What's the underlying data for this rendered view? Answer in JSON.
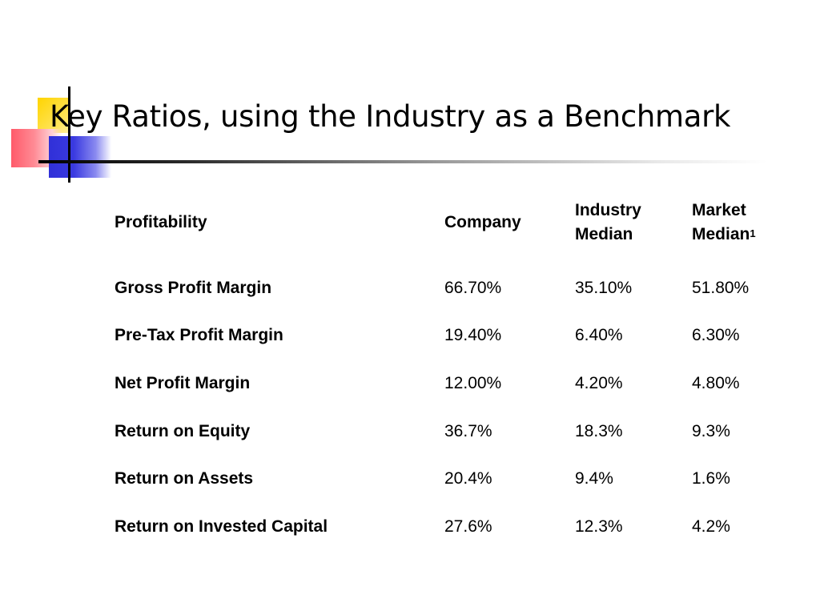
{
  "title": "Key Ratios, using the Industry as a Benchmark",
  "table": {
    "headers": {
      "metric": "Profitability",
      "company": "Company",
      "industry_line1": "Industry",
      "industry_line2": "Median",
      "market_line1": "Market",
      "market_line2": "Median",
      "market_footnote": "1"
    },
    "rows": [
      {
        "metric": "Gross Profit Margin",
        "company": "66.70%",
        "industry": "35.10%",
        "market": "51.80%"
      },
      {
        "metric": "Pre-Tax Profit Margin",
        "company": "19.40%",
        "industry": "6.40%",
        "market": "6.30%"
      },
      {
        "metric": "Net Profit Margin",
        "company": "12.00%",
        "industry": "4.20%",
        "market": "4.80%"
      },
      {
        "metric": "Return on Equity",
        "company": "36.7%",
        "industry": "18.3%",
        "market": "9.3%"
      },
      {
        "metric": "Return on Assets",
        "company": "20.4%",
        "industry": "9.4%",
        "market": "1.6%"
      },
      {
        "metric": "Return on Invested Capital",
        "company": "27.6%",
        "industry": "12.3%",
        "market": "4.2%"
      }
    ]
  },
  "colors": {
    "logo_yellow": "#ffd400",
    "logo_red": "#ff5a6a",
    "logo_blue": "#3030d8",
    "rule": "#000000"
  }
}
